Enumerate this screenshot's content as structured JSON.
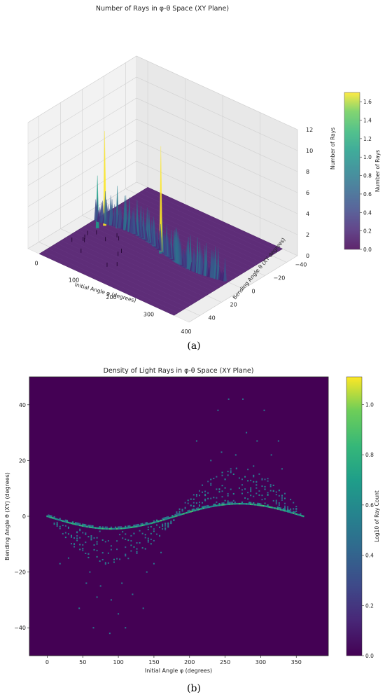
{
  "chart_data": [
    {
      "type": "surface3d",
      "title": "Number of Rays in φ-θ Space (XY Plane)",
      "xlabel": "Initial Angle φ (degrees)",
      "ylabel": "Bending Angle θ (XY degrees)",
      "zlabel": "Number of Rays",
      "xticks": [
        "0",
        "100",
        "200",
        "300",
        "400"
      ],
      "yticks": [
        "40",
        "20",
        "0",
        "−20",
        "−40"
      ],
      "zticks": [
        "0",
        "2",
        "4",
        "6",
        "8",
        "10",
        "12"
      ],
      "xlim": [
        -30,
        400
      ],
      "ylim": [
        -50,
        50
      ],
      "zlim": [
        0,
        12
      ],
      "colorbar": {
        "label": "Number of Rays",
        "ticks": [
          "0.0",
          "0.2",
          "0.4",
          "0.6",
          "0.8",
          "1.0",
          "1.2",
          "1.4",
          "1.6"
        ],
        "range": [
          0,
          1.7
        ]
      },
      "ridge": {
        "amplitude": 4.5,
        "period_deg": 360
      },
      "peaks": [
        {
          "phi": 30,
          "theta": 0,
          "count": 9
        },
        {
          "phi": 25,
          "theta": 5,
          "count": 5
        },
        {
          "phi": 55,
          "theta": -3,
          "count": 4
        },
        {
          "phi": 115,
          "theta": -4,
          "count": 3
        },
        {
          "phi": 180,
          "theta": 0,
          "count": 10
        },
        {
          "phi": 185,
          "theta": 2,
          "count": 4
        },
        {
          "phi": 265,
          "theta": 4,
          "count": 3
        }
      ],
      "caption": "(a)"
    },
    {
      "type": "heatmap",
      "title": "Density of Light Rays in φ-θ Space (XY Plane)",
      "xlabel": "Initial Angle φ (degrees)",
      "ylabel": "Bending Angle θ (XY) (degrees)",
      "xticks": [
        "0",
        "50",
        "100",
        "150",
        "200",
        "250",
        "300",
        "350"
      ],
      "yticks": [
        "40",
        "20",
        "0",
        "−20",
        "−40"
      ],
      "xlim": [
        -25,
        395
      ],
      "ylim": [
        -50,
        50
      ],
      "colorbar": {
        "label": "Log10 of Ray Count",
        "ticks": [
          "0.0",
          "0.2",
          "0.4",
          "0.6",
          "0.8",
          "1.0"
        ],
        "range": [
          0,
          1.11
        ]
      },
      "ridge": {
        "amplitude": 4.5,
        "period_deg": 360
      },
      "outliers": [
        [
          45,
          -33
        ],
        [
          65,
          -40
        ],
        [
          88,
          -42
        ],
        [
          110,
          -40
        ],
        [
          135,
          -33
        ],
        [
          255,
          42
        ],
        [
          275,
          42
        ],
        [
          305,
          38
        ],
        [
          240,
          38
        ],
        [
          280,
          30
        ],
        [
          295,
          27
        ],
        [
          325,
          27
        ],
        [
          210,
          27
        ],
        [
          245,
          23
        ],
        [
          265,
          22
        ],
        [
          315,
          22
        ],
        [
          55,
          -24
        ],
        [
          75,
          -25
        ],
        [
          105,
          -24
        ],
        [
          120,
          -28
        ],
        [
          90,
          -30
        ],
        [
          70,
          -29
        ],
        [
          100,
          -35
        ],
        [
          150,
          -17
        ],
        [
          30,
          -15
        ],
        [
          18,
          -17
        ],
        [
          160,
          -13
        ],
        [
          60,
          -20
        ],
        [
          140,
          -20
        ],
        [
          230,
          20
        ],
        [
          290,
          18
        ],
        [
          330,
          17
        ]
      ],
      "caption": "(b)"
    }
  ]
}
